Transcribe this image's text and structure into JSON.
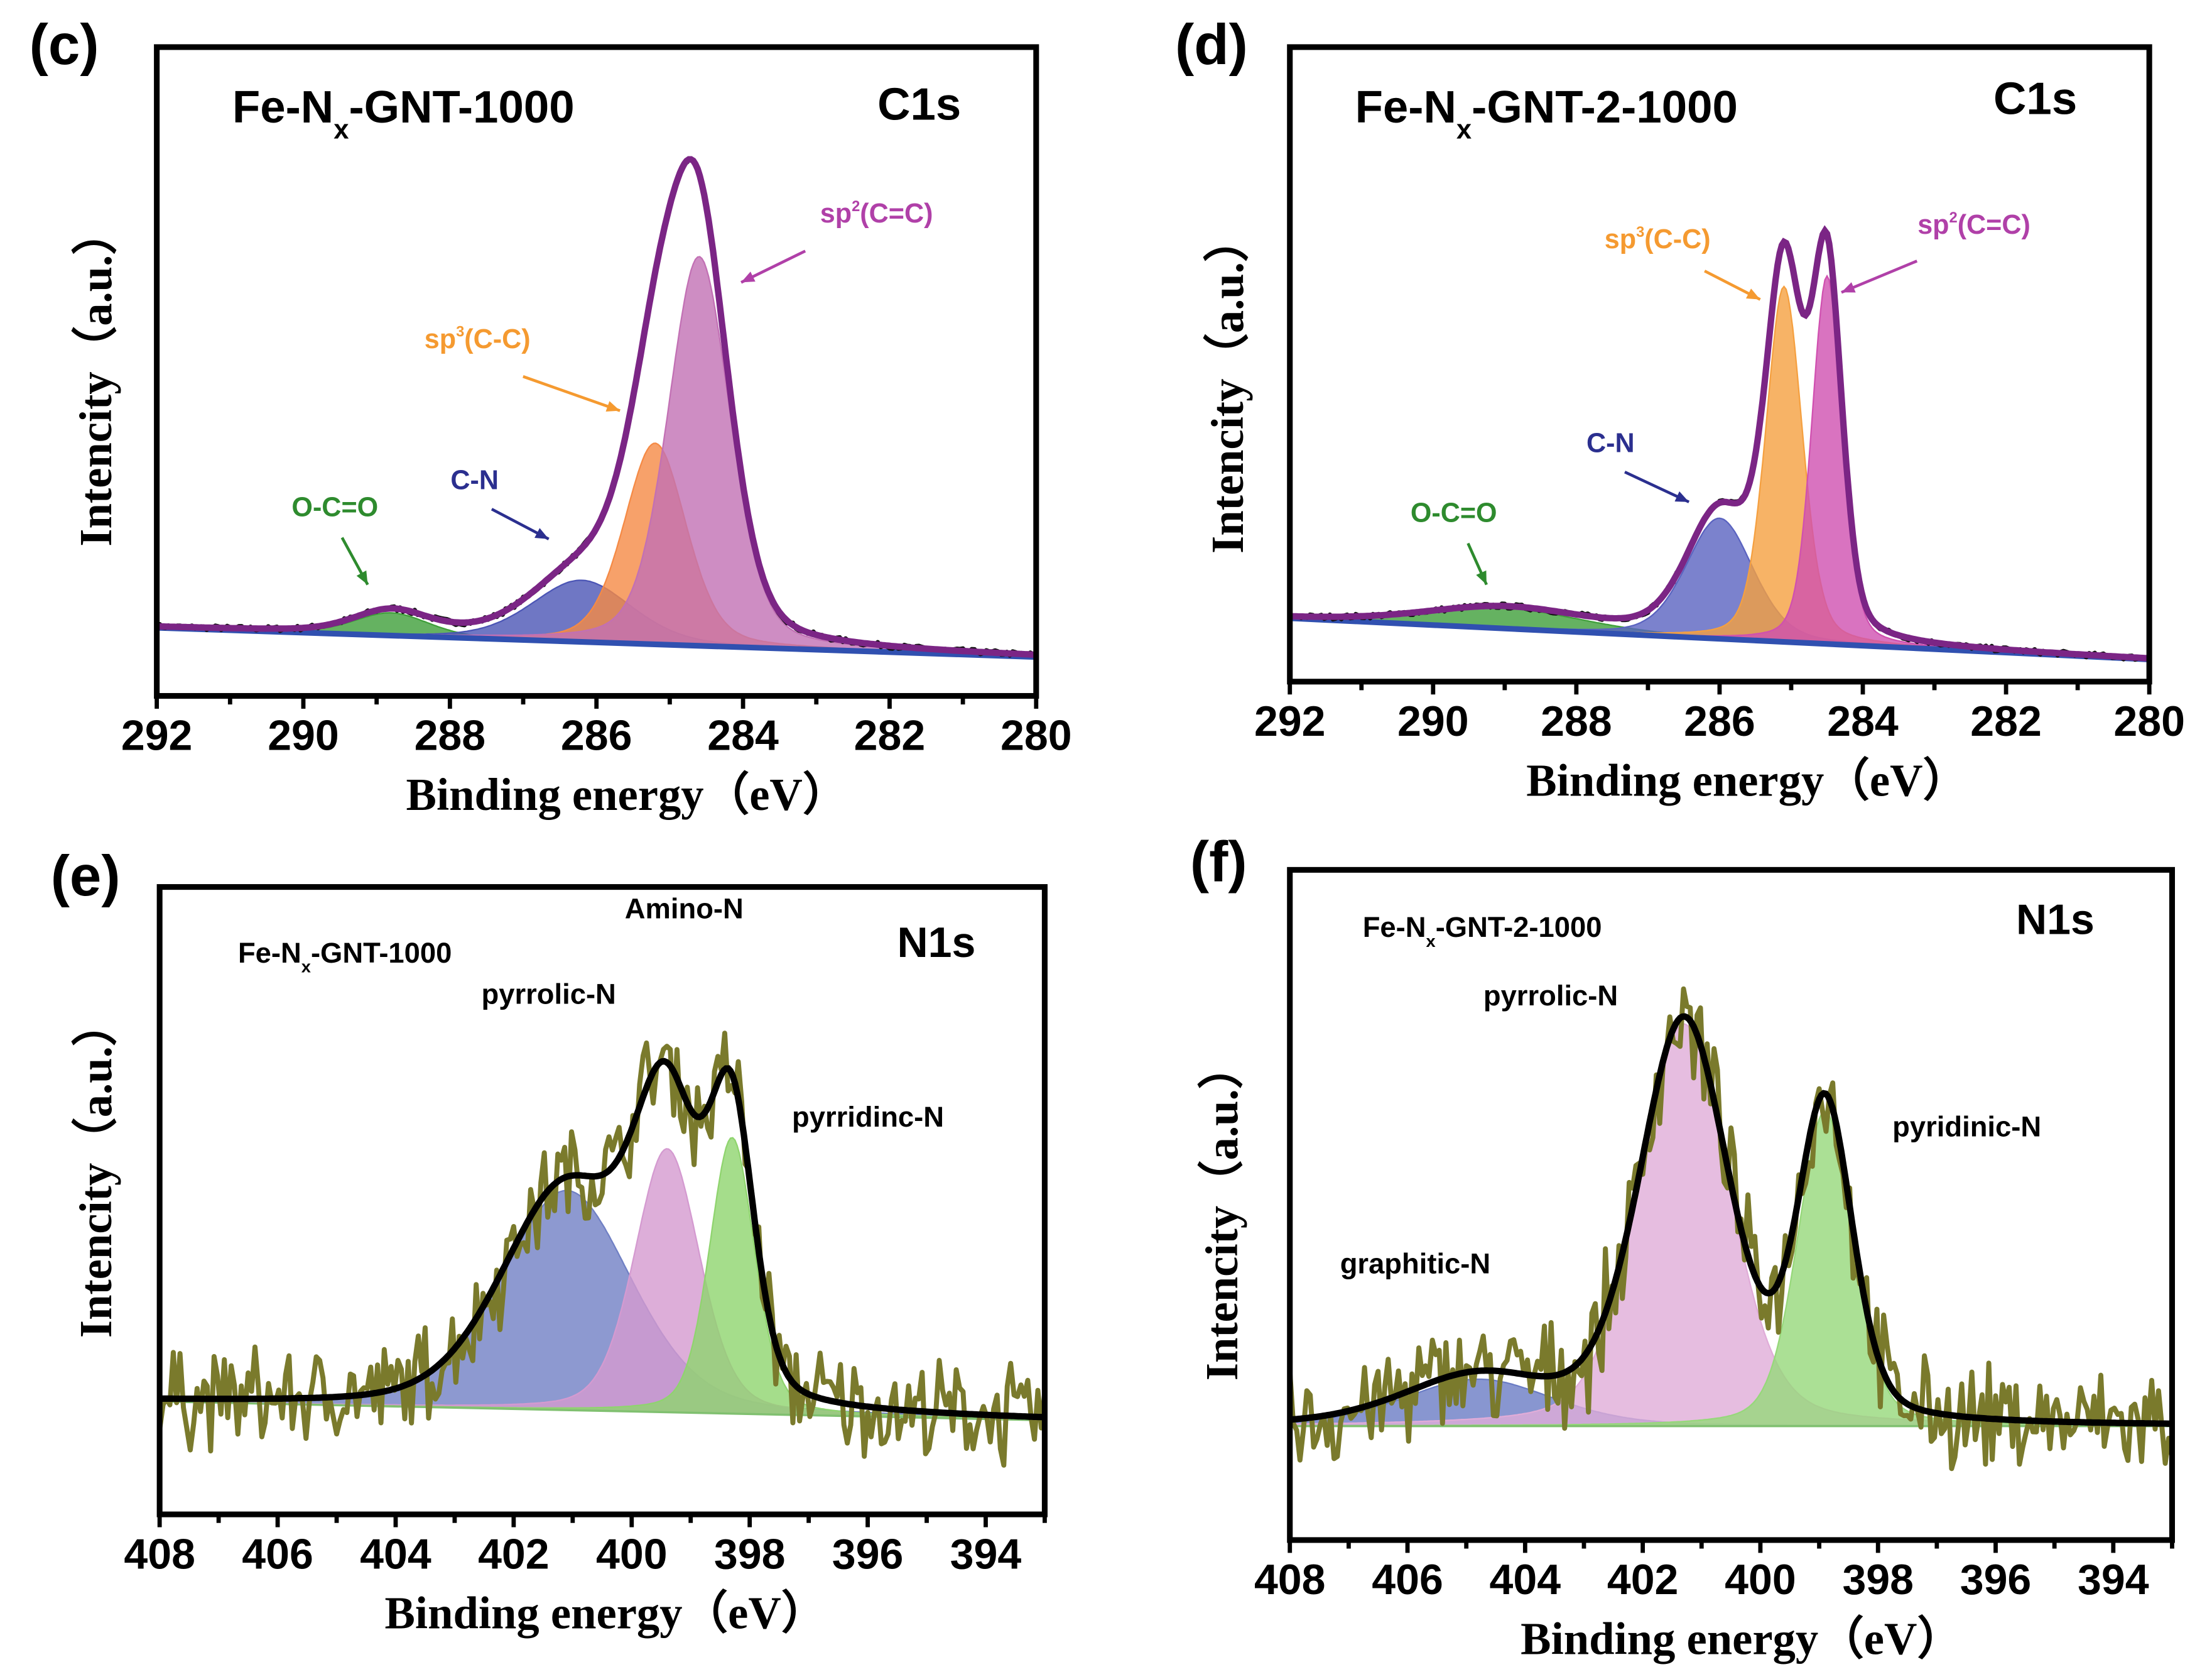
{
  "chart_data": [
    {
      "panel": "(c)",
      "type": "line",
      "title": "C1s",
      "sample": {
        "pre": "Fe-N",
        "sub": "x",
        "post": "-GNT-1000"
      },
      "xlabel": "Binding energy（eV）",
      "ylabel": "Intencity（a.u.）",
      "xlim": [
        292,
        280
      ],
      "ylim": [
        0,
        100
      ],
      "xticks": [
        292,
        290,
        288,
        286,
        284,
        282,
        280
      ],
      "baseline": [
        10.5,
        6
      ],
      "envelope_color": "#7b2585",
      "data_color": "#111111",
      "data_noise": 0.4,
      "peaks": [
        {
          "name": "O-C=O",
          "center": 288.8,
          "height": 3.5,
          "fwhm": 1.2,
          "color": "#3f9f3a",
          "label_color": "#2e8b2e"
        },
        {
          "name": "C-N",
          "center": 286.2,
          "height": 9.5,
          "fwhm": 1.6,
          "color": "#4b55b5",
          "label_color": "#2b2f8f"
        },
        {
          "name": "sp3(C-C)",
          "center": 285.2,
          "height": 31,
          "fwhm": 1.0,
          "color": "#f58a45",
          "label_color": "#f59a30"
        },
        {
          "name": "sp2(C=C)",
          "center": 284.6,
          "height": 60,
          "fwhm": 1.0,
          "color": "#c270b4",
          "label_color": "#b040a8"
        }
      ]
    },
    {
      "panel": "(d)",
      "type": "line",
      "title": "C1s",
      "sample": {
        "pre": "Fe-N",
        "sub": "x",
        "post": "-GNT-2-1000"
      },
      "xlabel": "Binding energy（eV）",
      "ylabel": "Intencity（a.u.）",
      "xlim": [
        292,
        280
      ],
      "ylim": [
        0,
        100
      ],
      "xticks": [
        292,
        290,
        288,
        286,
        284,
        282,
        280
      ],
      "baseline": [
        10,
        3.5
      ],
      "envelope_color": "#7b2585",
      "data_color": "#111111",
      "data_noise": 0.4,
      "peaks": [
        {
          "name": "O-C=O",
          "center": 289.0,
          "height": 3.2,
          "fwhm": 2.6,
          "color": "#3f9f3a",
          "label_color": "#2e8b2e"
        },
        {
          "name": "C-N",
          "center": 286.0,
          "height": 19,
          "fwhm": 1.1,
          "color": "#5a63c0",
          "label_color": "#2b2f8f"
        },
        {
          "name": "sp3(C-C)",
          "center": 285.1,
          "height": 56,
          "fwhm": 0.6,
          "color": "#f5a040",
          "label_color": "#f59a30"
        },
        {
          "name": "sp2(C=C)",
          "center": 284.5,
          "height": 58,
          "fwhm": 0.5,
          "color": "#d050b0",
          "label_color": "#b040a8"
        }
      ]
    },
    {
      "panel": "(e)",
      "type": "line",
      "title": "N1s",
      "sample": {
        "pre": "Fe-N",
        "sub": "x",
        "post": "-GNT-1000"
      },
      "xlabel": "Binding energy（eV）",
      "ylabel": "Intencity（a.u.）",
      "xlim": [
        408,
        393
      ],
      "ylim": [
        0,
        100
      ],
      "xticks": [
        408,
        406,
        404,
        402,
        400,
        398,
        396,
        394
      ],
      "baseline": [
        18,
        15
      ],
      "envelope_color": "#000000",
      "data_color": "#7a7a2c",
      "data_noise": 6,
      "peaks": [
        {
          "name": "pyrrolic-N",
          "center": 401.1,
          "height": 35,
          "fwhm": 2.6,
          "color": "#7080c4",
          "label_color": "#000000"
        },
        {
          "name": "Amino-N",
          "center": 399.4,
          "height": 42,
          "fwhm": 1.3,
          "color": "#d49ad0",
          "label_color": "#000000"
        },
        {
          "name": "pyrridinc-N",
          "center": 398.3,
          "height": 44,
          "fwhm": 0.9,
          "color": "#8fd46e",
          "label_color": "#000000"
        }
      ]
    },
    {
      "panel": "(f)",
      "type": "line",
      "title": "N1s",
      "sample": {
        "pre": "Fe-N",
        "sub": "x",
        "post": "-GNT-2-1000"
      },
      "xlabel": "Binding energy（eV）",
      "ylabel": "Intencity（a.u.）",
      "xlim": [
        408,
        393
      ],
      "ylim": [
        0,
        100
      ],
      "xticks": [
        408,
        406,
        404,
        402,
        400,
        398,
        396,
        394
      ],
      "baseline": [
        17,
        17
      ],
      "envelope_color": "#000000",
      "data_color": "#7a7a2c",
      "data_noise": 6,
      "peaks": [
        {
          "name": "graphitic-N",
          "center": 404.8,
          "height": 7,
          "fwhm": 3.0,
          "color": "#6a7cc4",
          "label_color": "#000000"
        },
        {
          "name": "pyrrolic-N",
          "center": 401.3,
          "height": 60,
          "fwhm": 1.8,
          "color": "#e0acd8",
          "label_color": "#000000"
        },
        {
          "name": "pyridinic-N",
          "center": 398.9,
          "height": 47,
          "fwhm": 1.1,
          "color": "#96d87a",
          "label_color": "#000000"
        }
      ]
    }
  ]
}
